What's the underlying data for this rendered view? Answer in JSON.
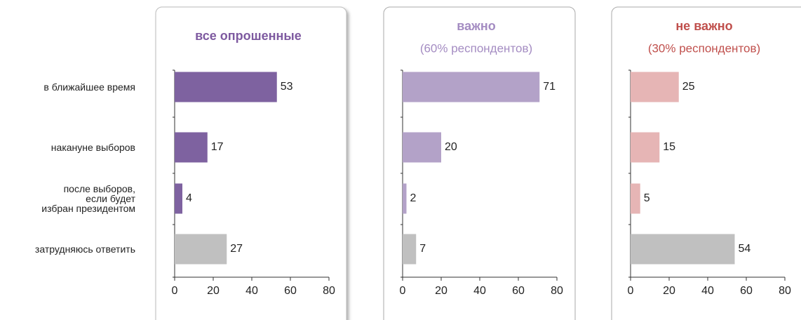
{
  "chart_data": [
    {
      "type": "bar",
      "orientation": "horizontal",
      "title": "все опрошенные",
      "title_color": "#7e5aa0",
      "categories": [
        "в ближайшее время",
        "накануне выборов",
        "после выборов,\nесли будет\nизбран президентом",
        "затрудняюсь ответить"
      ],
      "values": [
        53,
        17,
        4,
        27
      ],
      "colors": [
        "#7e62a0",
        "#7e62a0",
        "#7e62a0",
        "#c0c0c0"
      ],
      "xlim": [
        0,
        80
      ],
      "xticks": [
        0,
        20,
        40,
        60,
        80
      ]
    },
    {
      "type": "bar",
      "orientation": "horizontal",
      "title": "важно",
      "subtitle": "(60% респондентов)",
      "title_color": "#a48cc2",
      "values": [
        71,
        20,
        2,
        7
      ],
      "colors": [
        "#b3a2c8",
        "#b3a2c8",
        "#b3a2c8",
        "#c0c0c0"
      ],
      "xlim": [
        0,
        80
      ],
      "xticks": [
        0,
        20,
        40,
        60,
        80
      ]
    },
    {
      "type": "bar",
      "orientation": "horizontal",
      "title": "не важно",
      "subtitle": "(30% респондентов)",
      "title_color": "#c0504d",
      "values": [
        25,
        15,
        5,
        54
      ],
      "colors": [
        "#e6b5b5",
        "#e6b5b5",
        "#e6b5b5",
        "#c0c0c0"
      ],
      "xlim": [
        0,
        80
      ],
      "xticks": [
        0,
        20,
        40,
        60,
        80
      ]
    }
  ]
}
